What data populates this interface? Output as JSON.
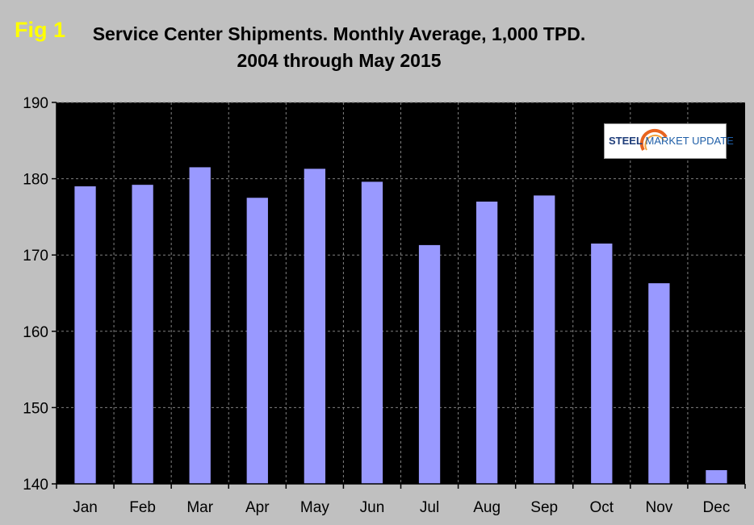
{
  "fig_label": "Fig 1",
  "title_line1": "Service Center Shipments. Monthly Average, 1,000 TPD.",
  "title_line2": "2004 through May 2015",
  "logo": {
    "word1": "STEEL",
    "word2": " MARKET UPDATE",
    "icon": "swoosh-logo-icon"
  },
  "colors": {
    "background": "#c0c0c0",
    "plot": "#000000",
    "bar": "#9999ff",
    "grid": "#808080",
    "fig_label": "#ffff00"
  },
  "chart_data": {
    "type": "bar",
    "title": "Service Center Shipments. Monthly Average, 1,000 TPD. 2004 through May 2015",
    "categories": [
      "Jan",
      "Feb",
      "Mar",
      "Apr",
      "May",
      "Jun",
      "Jul",
      "Aug",
      "Sep",
      "Oct",
      "Nov",
      "Dec"
    ],
    "values": [
      179.0,
      179.2,
      181.5,
      177.5,
      181.3,
      179.6,
      171.3,
      177.0,
      177.8,
      171.5,
      166.3,
      141.8
    ],
    "ylim": [
      140,
      190
    ],
    "yticks": [
      140,
      150,
      160,
      170,
      180,
      190
    ],
    "xlabel": "",
    "ylabel": "",
    "grid": true,
    "legend": "none"
  }
}
